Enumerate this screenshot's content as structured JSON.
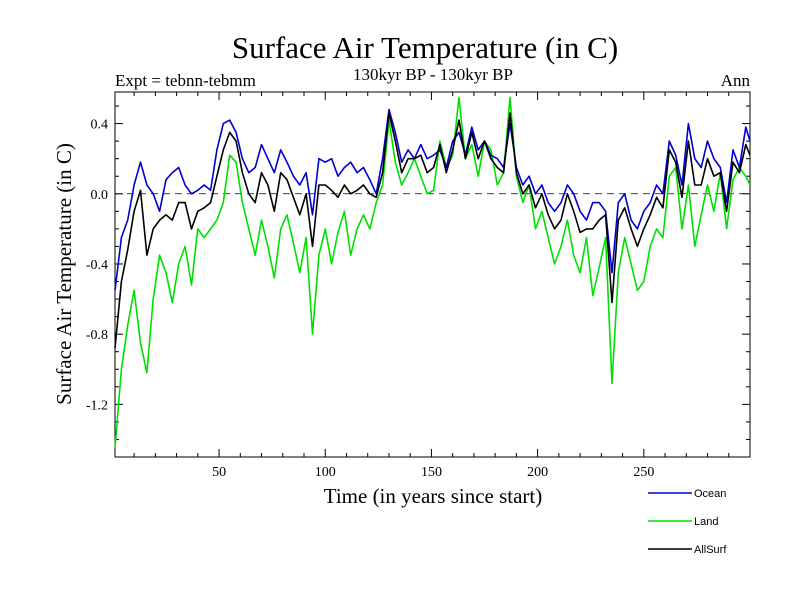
{
  "chart_data": {
    "type": "line",
    "title": "Surface Air Temperature (in C)",
    "subtitle": "130kyr BP - 130kyr BP",
    "expt_label": "Expt = tebnn-tebmm",
    "period_label": "Ann",
    "xlabel": "Time (in years since start)",
    "ylabel": "Surface Air Temperature (in C)",
    "xlim": [
      1,
      300
    ],
    "ylim": [
      -1.5,
      0.58
    ],
    "x_ticks": [
      {
        "value": 50,
        "label": "50"
      },
      {
        "value": 100,
        "label": "100"
      },
      {
        "value": 150,
        "label": "150"
      },
      {
        "value": 200,
        "label": "200"
      },
      {
        "value": 250,
        "label": "250"
      }
    ],
    "y_ticks": [
      {
        "value": 0.4,
        "label": "0.4"
      },
      {
        "value": 0.0,
        "label": "0.0"
      },
      {
        "value": -0.4,
        "label": "-0.4"
      },
      {
        "value": -0.8,
        "label": "-0.8"
      },
      {
        "value": -1.2,
        "label": "-1.2"
      }
    ],
    "zero_line": {
      "value": 0.0,
      "style": "dashed"
    },
    "legend_position": "bottom-right",
    "series": [
      {
        "name": "Land",
        "color": "#00e000",
        "x": [
          1,
          4,
          7,
          10,
          13,
          16,
          19,
          22,
          25,
          28,
          31,
          34,
          37,
          40,
          43,
          46,
          49,
          52,
          55,
          58,
          61,
          64,
          67,
          70,
          73,
          76,
          79,
          82,
          85,
          88,
          91,
          94,
          97,
          100,
          103,
          106,
          109,
          112,
          115,
          118,
          121,
          124,
          127,
          130,
          133,
          136,
          139,
          142,
          145,
          148,
          151,
          154,
          157,
          160,
          163,
          166,
          169,
          172,
          175,
          178,
          181,
          184,
          187,
          190,
          193,
          196,
          199,
          202,
          205,
          208,
          211,
          214,
          217,
          220,
          223,
          226,
          229,
          232,
          235,
          238,
          241,
          244,
          247,
          250,
          253,
          256,
          259,
          262,
          265,
          268,
          271,
          274,
          277,
          280,
          283,
          286,
          289,
          292,
          295,
          298,
          300
        ],
        "values": [
          -1.45,
          -1.0,
          -0.75,
          -0.55,
          -0.85,
          -1.02,
          -0.6,
          -0.35,
          -0.45,
          -0.62,
          -0.4,
          -0.3,
          -0.52,
          -0.2,
          -0.25,
          -0.2,
          -0.15,
          -0.05,
          0.22,
          0.18,
          -0.05,
          -0.2,
          -0.35,
          -0.15,
          -0.3,
          -0.48,
          -0.2,
          -0.12,
          -0.28,
          -0.45,
          -0.25,
          -0.8,
          -0.35,
          -0.2,
          -0.4,
          -0.22,
          -0.1,
          -0.35,
          -0.2,
          -0.12,
          -0.2,
          -0.05,
          0.05,
          0.42,
          0.18,
          0.05,
          0.12,
          0.2,
          0.1,
          0.0,
          0.02,
          0.3,
          0.15,
          0.22,
          0.55,
          0.2,
          0.28,
          0.1,
          0.3,
          0.25,
          0.05,
          0.12,
          0.55,
          0.1,
          -0.05,
          0.05,
          -0.2,
          -0.1,
          -0.25,
          -0.4,
          -0.3,
          -0.15,
          -0.35,
          -0.45,
          -0.25,
          -0.58,
          -0.42,
          -0.25,
          -1.08,
          -0.45,
          -0.25,
          -0.4,
          -0.55,
          -0.5,
          -0.3,
          -0.2,
          -0.25,
          0.1,
          0.15,
          -0.2,
          0.05,
          -0.3,
          -0.12,
          0.05,
          -0.1,
          0.12,
          -0.2,
          0.08,
          0.15,
          0.1,
          0.05
        ]
      },
      {
        "name": "Ocean",
        "color": "#0000d0",
        "x": [
          1,
          4,
          7,
          10,
          13,
          16,
          19,
          22,
          25,
          28,
          31,
          34,
          37,
          40,
          43,
          46,
          49,
          52,
          55,
          58,
          61,
          64,
          67,
          70,
          73,
          76,
          79,
          82,
          85,
          88,
          91,
          94,
          97,
          100,
          103,
          106,
          109,
          112,
          115,
          118,
          121,
          124,
          127,
          130,
          133,
          136,
          139,
          142,
          145,
          148,
          151,
          154,
          157,
          160,
          163,
          166,
          169,
          172,
          175,
          178,
          181,
          184,
          187,
          190,
          193,
          196,
          199,
          202,
          205,
          208,
          211,
          214,
          217,
          220,
          223,
          226,
          229,
          232,
          235,
          238,
          241,
          244,
          247,
          250,
          253,
          256,
          259,
          262,
          265,
          268,
          271,
          274,
          277,
          280,
          283,
          286,
          289,
          292,
          295,
          298,
          300
        ],
        "values": [
          -0.55,
          -0.25,
          -0.15,
          0.05,
          0.18,
          0.05,
          0.0,
          -0.1,
          0.08,
          0.12,
          0.15,
          0.05,
          0.0,
          0.02,
          0.05,
          0.02,
          0.25,
          0.4,
          0.42,
          0.35,
          0.2,
          0.12,
          0.15,
          0.28,
          0.2,
          0.12,
          0.25,
          0.18,
          0.1,
          0.05,
          0.12,
          -0.12,
          0.2,
          0.18,
          0.2,
          0.1,
          0.15,
          0.18,
          0.12,
          0.15,
          0.08,
          0.0,
          0.2,
          0.48,
          0.35,
          0.18,
          0.25,
          0.2,
          0.28,
          0.2,
          0.22,
          0.25,
          0.15,
          0.3,
          0.35,
          0.22,
          0.38,
          0.25,
          0.3,
          0.22,
          0.2,
          0.15,
          0.4,
          0.15,
          0.05,
          0.1,
          0.0,
          0.05,
          -0.05,
          -0.1,
          -0.05,
          0.05,
          0.0,
          -0.1,
          -0.15,
          -0.05,
          -0.05,
          -0.1,
          -0.45,
          -0.05,
          0.0,
          -0.15,
          -0.2,
          -0.1,
          -0.05,
          0.05,
          0.0,
          0.3,
          0.22,
          0.05,
          0.4,
          0.2,
          0.15,
          0.3,
          0.2,
          0.15,
          -0.05,
          0.25,
          0.15,
          0.38,
          0.3
        ]
      },
      {
        "name": "AllSurf",
        "color": "#000000",
        "x": [
          1,
          4,
          7,
          10,
          13,
          16,
          19,
          22,
          25,
          28,
          31,
          34,
          37,
          40,
          43,
          46,
          49,
          52,
          55,
          58,
          61,
          64,
          67,
          70,
          73,
          76,
          79,
          82,
          85,
          88,
          91,
          94,
          97,
          100,
          103,
          106,
          109,
          112,
          115,
          118,
          121,
          124,
          127,
          130,
          133,
          136,
          139,
          142,
          145,
          148,
          151,
          154,
          157,
          160,
          163,
          166,
          169,
          172,
          175,
          178,
          181,
          184,
          187,
          190,
          193,
          196,
          199,
          202,
          205,
          208,
          211,
          214,
          217,
          220,
          223,
          226,
          229,
          232,
          235,
          238,
          241,
          244,
          247,
          250,
          253,
          256,
          259,
          262,
          265,
          268,
          271,
          274,
          277,
          280,
          283,
          286,
          289,
          292,
          295,
          298,
          300
        ],
        "values": [
          -0.88,
          -0.5,
          -0.32,
          -0.1,
          0.02,
          -0.35,
          -0.2,
          -0.15,
          -0.12,
          -0.15,
          -0.05,
          -0.05,
          -0.2,
          -0.1,
          -0.08,
          -0.05,
          0.1,
          0.25,
          0.35,
          0.3,
          0.12,
          0.0,
          -0.05,
          0.12,
          0.05,
          -0.1,
          0.12,
          0.08,
          -0.02,
          -0.12,
          0.0,
          -0.3,
          0.05,
          0.05,
          0.02,
          -0.02,
          0.05,
          0.0,
          0.02,
          0.05,
          0.0,
          -0.02,
          0.12,
          0.46,
          0.3,
          0.12,
          0.2,
          0.2,
          0.22,
          0.12,
          0.15,
          0.28,
          0.12,
          0.25,
          0.42,
          0.2,
          0.35,
          0.2,
          0.3,
          0.2,
          0.15,
          0.12,
          0.46,
          0.12,
          0.0,
          0.05,
          -0.08,
          0.0,
          -0.12,
          -0.2,
          -0.15,
          0.0,
          -0.1,
          -0.22,
          -0.2,
          -0.2,
          -0.15,
          -0.12,
          -0.62,
          -0.15,
          -0.08,
          -0.2,
          -0.3,
          -0.2,
          -0.12,
          -0.02,
          -0.08,
          0.25,
          0.18,
          -0.02,
          0.3,
          0.05,
          0.05,
          0.2,
          0.1,
          0.12,
          -0.1,
          0.18,
          0.12,
          0.28,
          0.22
        ]
      }
    ]
  }
}
